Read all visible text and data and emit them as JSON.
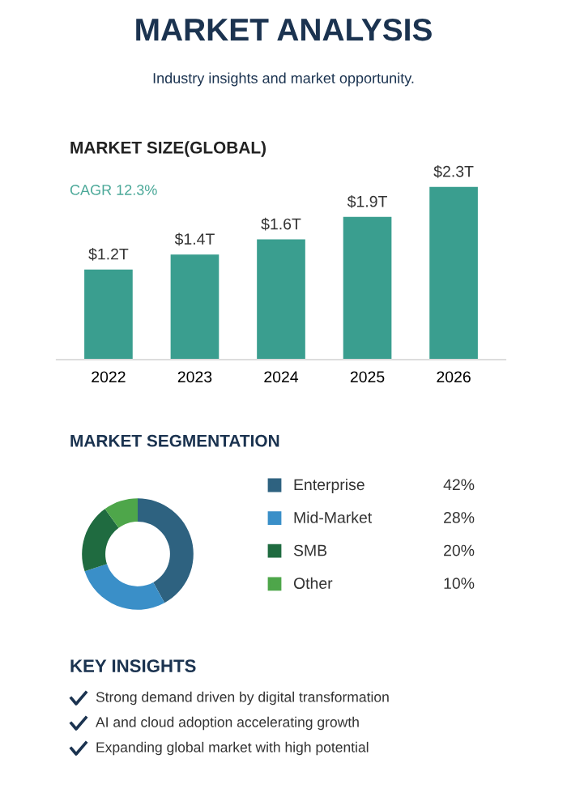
{
  "chart_data": [
    {
      "type": "other",
      "title": "MARKET ANALYSIS",
      "subtitle": "Industry insights and market opportunity."
    },
    {
      "type": "bar",
      "title": "MARKET SIZE(GLOBAL)",
      "categories": [
        "2022",
        "2023",
        "2024",
        "2025",
        "2026"
      ],
      "values": [
        1.2,
        1.4,
        1.6,
        1.9,
        2.3
      ],
      "value_labels": [
        "$1.2T",
        "$1.4T",
        "$1.6T",
        "$1.9T",
        "$2.3T"
      ],
      "color": "#3a9e8f",
      "annotations": [
        "CAGR 12.3%"
      ],
      "tick_labels": "x",
      "grid": false
    },
    {
      "type": "donut",
      "title": "MARKET SEGMENTATION",
      "categories": [
        "Enterprise",
        "Mid-Market",
        "SMB",
        "Other"
      ],
      "values": [
        42,
        28,
        20,
        10
      ],
      "value_labels": [
        "42%",
        "28%",
        "20%",
        "10%"
      ],
      "colors": [
        "#2e6280",
        "#3a8fc8",
        "#1f6b40",
        "#4ea64a"
      ],
      "legend": "right"
    },
    {
      "type": "other",
      "title": "KEY INSIGHTS",
      "annotations": [
        "Strong demand driven by digital transformation",
        "AI and cloud adoption accelerating growth",
        "Expanding global market with high potential"
      ]
    }
  ]
}
